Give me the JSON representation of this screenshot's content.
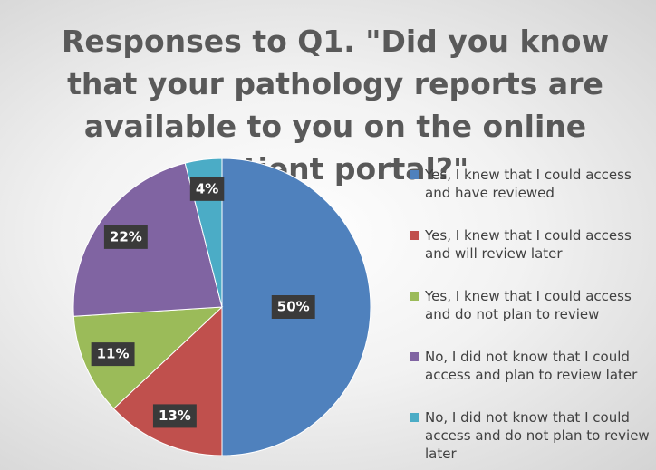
{
  "chart_data": {
    "type": "pie",
    "title": "Responses to Q1. \"Did you know that your pathology reports are available to you on the online patient portal?\"",
    "categories": [
      "Yes, I knew that I could access and have reviewed",
      "Yes, I knew that I could access and will review later",
      "Yes, I knew that I could access and do not plan to review",
      "No, I did not know that I could access and plan to review later",
      "No, I did not know that I could access and do not plan to review later"
    ],
    "values": [
      50,
      13,
      11,
      22,
      4
    ],
    "value_labels": [
      "50%",
      "13%",
      "11%",
      "22%",
      "4%"
    ],
    "colors": [
      "#4f81bd",
      "#c0504d",
      "#9bbb59",
      "#8064a2",
      "#4bacc6"
    ],
    "legend": "right"
  }
}
